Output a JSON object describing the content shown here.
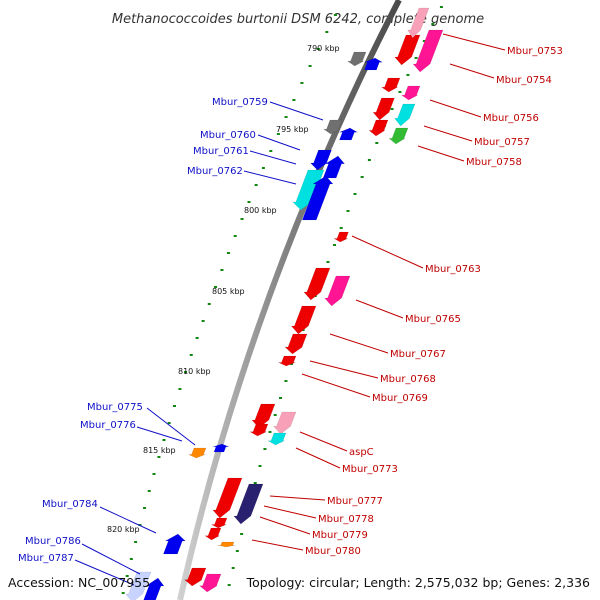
{
  "title": "Methanococcoides burtonii DSM 6242, complete genome",
  "footer": {
    "accession": "Accession: NC_007955",
    "topology": "Topology: circular; Length: 2,575,032 bp; Genes: 2,336"
  },
  "kbp_labels": [
    "790 kbp",
    "795 kbp",
    "800 kbp",
    "805 kbp",
    "810 kbp",
    "815 kbp",
    "820 kbp"
  ],
  "right_labels": [
    "Mbur_0753",
    "Mbur_0754",
    "Mbur_0756",
    "Mbur_0757",
    "Mbur_0758",
    "Mbur_0763",
    "Mbur_0765",
    "Mbur_0767",
    "Mbur_0768",
    "Mbur_0769",
    "aspC",
    "Mbur_0773",
    "Mbur_0777",
    "Mbur_0778",
    "Mbur_0779",
    "Mbur_0780"
  ],
  "left_labels": [
    "Mbur_0759",
    "Mbur_0760",
    "Mbur_0761",
    "Mbur_0762",
    "Mbur_0775",
    "Mbur_0776",
    "Mbur_0784",
    "Mbur_0786",
    "Mbur_0787"
  ],
  "colors": {
    "forward_label": "#c00000",
    "reverse_label": "#1010c8",
    "red": "#ee0000",
    "blue": "#0000ee",
    "cyan": "#00e0e0",
    "magenta": "#ff1493",
    "pink": "#f8a0b8",
    "gray": "#707070",
    "green": "#33bb33",
    "orange": "#ff8800",
    "navy": "#2a2070",
    "backbone": "#808080"
  }
}
